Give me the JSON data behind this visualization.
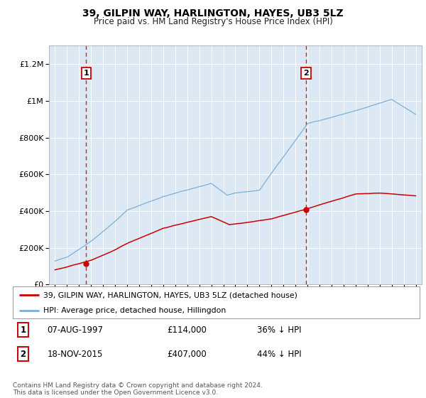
{
  "title": "39, GILPIN WAY, HARLINGTON, HAYES, UB3 5LZ",
  "subtitle": "Price paid vs. HM Land Registry's House Price Index (HPI)",
  "sale1_label": "07-AUG-1997",
  "sale1_price": 114000,
  "sale1_pct": "36% ↓ HPI",
  "sale2_label": "18-NOV-2015",
  "sale2_price": 407000,
  "sale2_pct": "44% ↓ HPI",
  "sale1_x": 1997.6,
  "sale2_x": 2015.88,
  "red_color": "#cc0000",
  "blue_color": "#7bafd4",
  "legend_label_red": "39, GILPIN WAY, HARLINGTON, HAYES, UB3 5LZ (detached house)",
  "legend_label_blue": "HPI: Average price, detached house, Hillingdon",
  "footer": "Contains HM Land Registry data © Crown copyright and database right 2024.\nThis data is licensed under the Open Government Licence v3.0.",
  "ylim": [
    0,
    1300000
  ],
  "xlim": [
    1994.5,
    2025.5
  ],
  "background_color": "#dce9f5"
}
